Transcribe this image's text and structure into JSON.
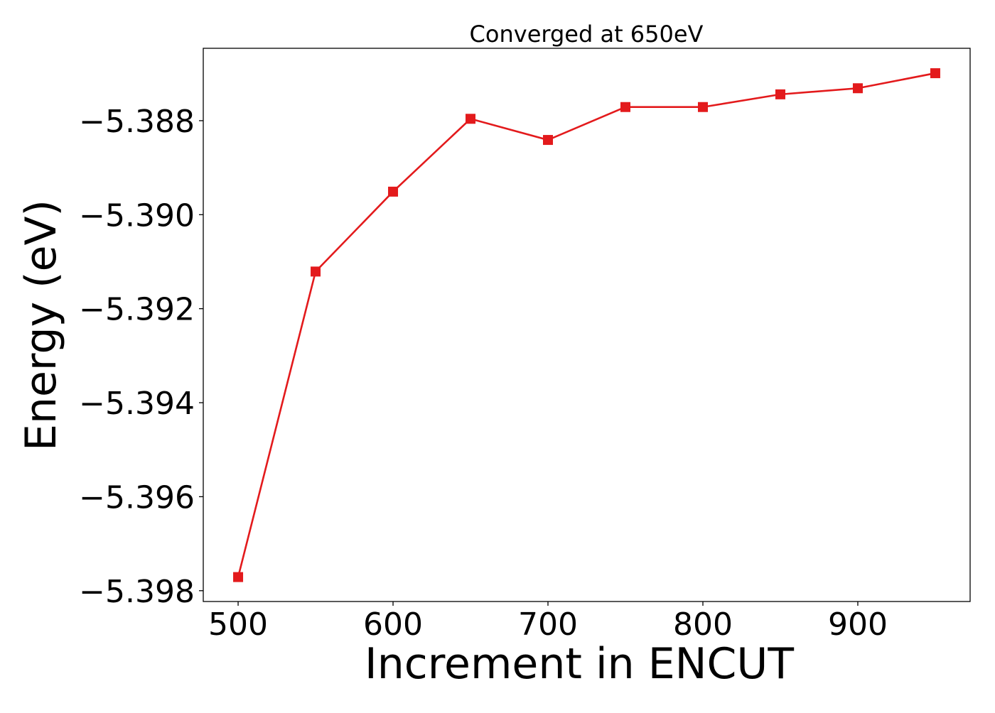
{
  "chart_data": {
    "type": "line",
    "title": "Converged at 650eV",
    "xlabel": "Increment in ENCUT",
    "ylabel": "Energy (eV)",
    "x": [
      500,
      550,
      600,
      650,
      700,
      750,
      800,
      850,
      900,
      950
    ],
    "series": [
      {
        "values": [
          -5.39771,
          -5.39121,
          -5.38951,
          -5.38796,
          -5.38841,
          -5.38771,
          -5.38771,
          -5.38744,
          -5.38731,
          -5.38699
        ],
        "color": "#e31a1c",
        "marker": "square"
      }
    ],
    "xlim": [
      477.5,
      972.5
    ],
    "ylim": [
      -5.39823,
      -5.38646
    ],
    "xticks": [
      500,
      600,
      700,
      800,
      900
    ],
    "xtick_labels": [
      "500",
      "600",
      "700",
      "800",
      "900"
    ],
    "yticks": [
      -5.398,
      -5.396,
      -5.394,
      -5.392,
      -5.39,
      -5.388
    ],
    "ytick_labels": [
      "−5.398",
      "−5.396",
      "−5.394",
      "−5.392",
      "−5.390",
      "−5.388"
    ],
    "grid": false,
    "legend": "none"
  }
}
